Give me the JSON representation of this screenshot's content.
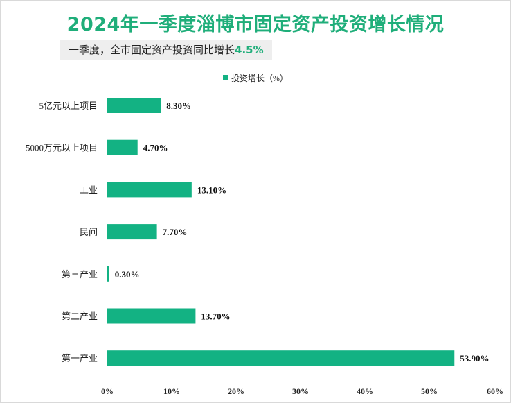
{
  "header": {
    "title": "2024年一季度淄博市固定资产投资增长情况",
    "subtitle_prefix": "一季度，全市固定资产投资同比增长",
    "subtitle_value": "4.5%"
  },
  "colors": {
    "bar": "#13b283",
    "title": "#1fae7a"
  },
  "chart_data": {
    "type": "bar",
    "orientation": "horizontal",
    "title": "2024年一季度淄博市固定资产投资增长情况",
    "legend": {
      "label": "投资增长（%）",
      "position": "top-right"
    },
    "categories": [
      "5亿元以上项目",
      "5000万元以上项目",
      "工业",
      "民间",
      "第三产业",
      "第二产业",
      "第一产业"
    ],
    "values": [
      8.3,
      4.7,
      13.1,
      7.7,
      0.3,
      13.7,
      53.9
    ],
    "value_labels": [
      "8.30%",
      "4.70%",
      "13.10%",
      "7.70%",
      "0.30%",
      "13.70%",
      "53.90%"
    ],
    "xlim": [
      0,
      60
    ],
    "ticks": [
      0,
      10,
      20,
      30,
      40,
      50,
      60
    ],
    "tick_labels": [
      "0%",
      "10%",
      "20%",
      "30%",
      "40%",
      "50%",
      "60%"
    ],
    "grid": false
  }
}
